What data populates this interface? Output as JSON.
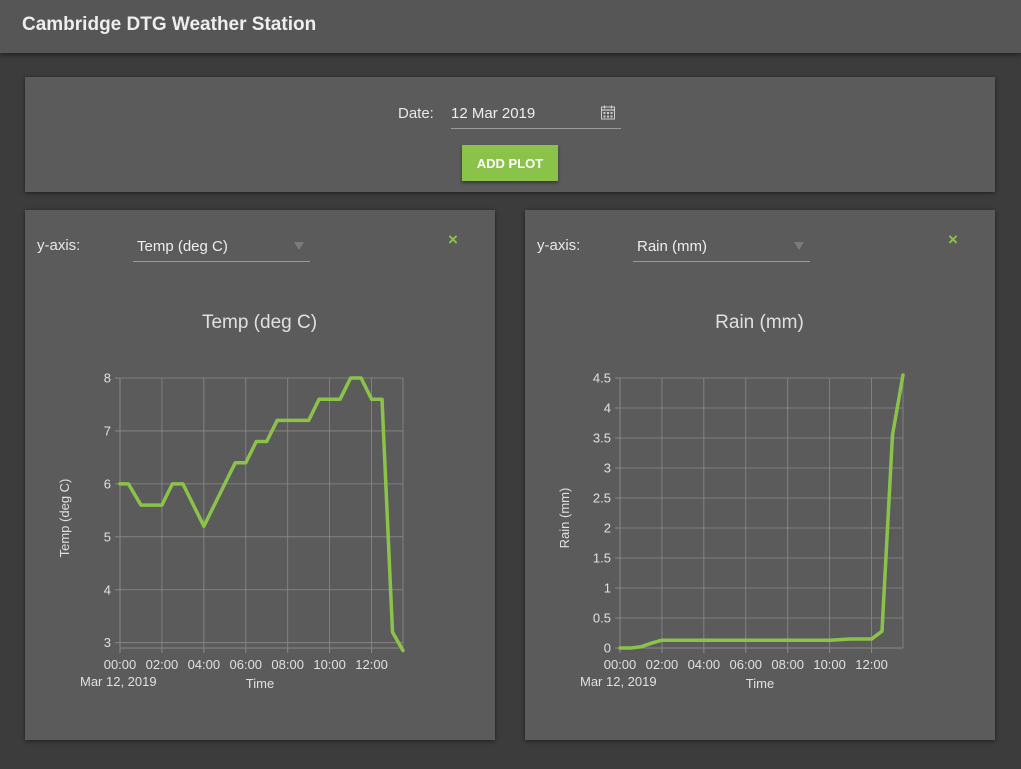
{
  "app": {
    "title": "Cambridge DTG Weather Station"
  },
  "controls": {
    "date_label": "Date:",
    "date_value": "12 Mar 2019",
    "add_plot_label": "ADD PLOT"
  },
  "plots": [
    {
      "yaxis_label": "y-axis:",
      "selected": "Temp (deg C)",
      "close_symbol": "×"
    },
    {
      "yaxis_label": "y-axis:",
      "selected": "Rain (mm)",
      "close_symbol": "×"
    }
  ],
  "colors": {
    "accent": "#8bc34a",
    "card": "#5b5b5b",
    "background": "#3c3c3c",
    "grid": "#8a8a8a"
  },
  "chart_data": [
    {
      "type": "line",
      "title": "Temp (deg C)",
      "xlabel": "Time",
      "ylabel": "Temp (deg C)",
      "x_ticks": [
        "00:00",
        "02:00",
        "04:00",
        "06:00",
        "08:00",
        "10:00",
        "12:00"
      ],
      "x_sublabel": "Mar 12, 2019",
      "xlim": [
        0,
        13.5
      ],
      "ylim": [
        2.9,
        8
      ],
      "y_ticks": [
        "3",
        "4",
        "5",
        "6",
        "7",
        "8"
      ],
      "y_tick_values": [
        3,
        4,
        5,
        6,
        7,
        8
      ],
      "grid": true,
      "series": [
        {
          "x": [
            0,
            0.4,
            1,
            1.5,
            2,
            2.5,
            3,
            3.5,
            4,
            4.5,
            5,
            5.5,
            6,
            6.5,
            7,
            7.5,
            8,
            8.5,
            9,
            9.5,
            10,
            10.5,
            11,
            11.5,
            12,
            12.5,
            13,
            13.5
          ],
          "y": [
            6,
            6,
            5.6,
            5.6,
            5.6,
            6,
            6,
            5.6,
            5.2,
            5.6,
            6,
            6.4,
            6.4,
            6.8,
            6.8,
            7.2,
            7.2,
            7.2,
            7.2,
            7.6,
            7.6,
            7.6,
            8,
            8,
            7.6,
            7.6,
            3.2,
            2.85
          ]
        }
      ]
    },
    {
      "type": "line",
      "title": "Rain (mm)",
      "xlabel": "Time",
      "ylabel": "Rain (mm)",
      "x_ticks": [
        "00:00",
        "02:00",
        "04:00",
        "06:00",
        "08:00",
        "10:00",
        "12:00"
      ],
      "x_sublabel": "Mar 12, 2019",
      "xlim": [
        0,
        13.5
      ],
      "ylim": [
        0,
        4.5
      ],
      "y_ticks": [
        "0",
        "0.5",
        "1",
        "1.5",
        "2",
        "2.5",
        "3",
        "3.5",
        "4",
        "4.5"
      ],
      "y_tick_values": [
        0,
        0.5,
        1,
        1.5,
        2,
        2.5,
        3,
        3.5,
        4,
        4.5
      ],
      "grid": true,
      "series": [
        {
          "x": [
            0,
            0.5,
            1,
            1.5,
            2,
            4,
            6,
            8,
            10,
            11,
            11.5,
            12,
            12.5,
            13,
            13.5
          ],
          "y": [
            0,
            0,
            0.02,
            0.08,
            0.13,
            0.13,
            0.13,
            0.13,
            0.13,
            0.15,
            0.15,
            0.15,
            0.28,
            3.55,
            4.55
          ]
        }
      ]
    }
  ]
}
